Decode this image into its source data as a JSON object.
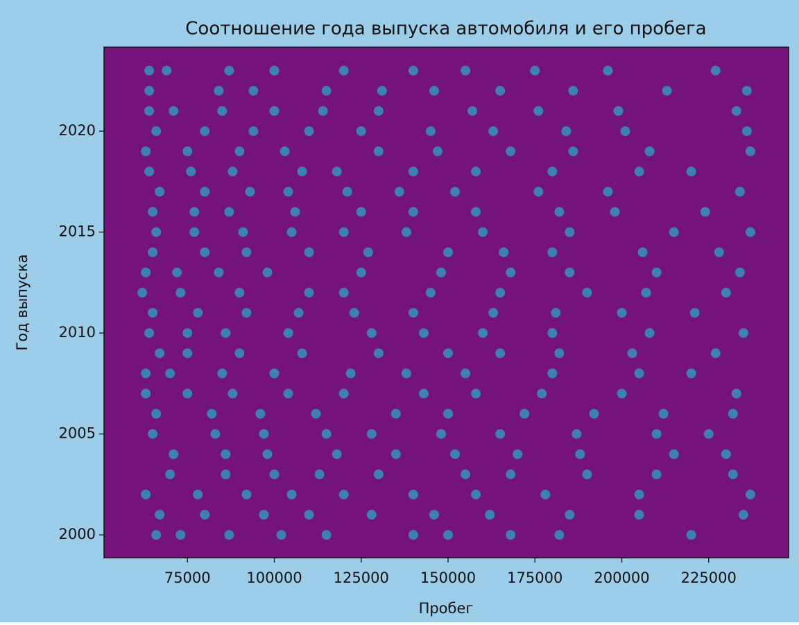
{
  "chart_data": {
    "type": "scatter",
    "title": "Соотношение года выпуска автомобиля и его пробега",
    "xlabel": "Пробег",
    "ylabel": "Год выпуска",
    "color": "#3d80b6",
    "facecolor": "#74137a",
    "background": "#9ccde9",
    "xlim": [
      51000,
      248000
    ],
    "ylim": [
      1998.87,
      2024.16
    ],
    "xticks": [
      75000,
      100000,
      125000,
      150000,
      175000,
      200000,
      225000
    ],
    "yticks": [
      2000,
      2005,
      2010,
      2015,
      2020
    ],
    "x": [
      66000,
      73000,
      87000,
      102000,
      115000,
      140000,
      150000,
      168000,
      182000,
      220000,
      67000,
      80000,
      97000,
      110000,
      128000,
      146000,
      162000,
      185000,
      205000,
      235000,
      63000,
      78000,
      92000,
      105000,
      120000,
      140000,
      158000,
      178000,
      205000,
      237000,
      70000,
      86000,
      100000,
      113000,
      130000,
      155000,
      168000,
      190000,
      210000,
      232000,
      71000,
      86000,
      98000,
      118000,
      135000,
      152000,
      170000,
      188000,
      215000,
      230000,
      65000,
      83000,
      97000,
      115000,
      128000,
      148000,
      165000,
      187000,
      210000,
      225000,
      66000,
      82000,
      96000,
      112000,
      135000,
      150000,
      172000,
      192000,
      212000,
      232000,
      63000,
      75000,
      88000,
      104000,
      120000,
      143000,
      158000,
      177000,
      200000,
      233000,
      63000,
      70000,
      85000,
      100000,
      122000,
      138000,
      155000,
      180000,
      205000,
      220000,
      67000,
      75000,
      90000,
      108000,
      130000,
      150000,
      165000,
      182000,
      203000,
      227000,
      64000,
      75000,
      86000,
      104000,
      128000,
      143000,
      160000,
      180000,
      208000,
      235000,
      65000,
      78000,
      92000,
      107000,
      123000,
      140000,
      163000,
      181000,
      200000,
      221000,
      62000,
      73000,
      90000,
      110000,
      120000,
      145000,
      165000,
      190000,
      207000,
      230000,
      63000,
      72000,
      84000,
      98000,
      125000,
      148000,
      168000,
      185000,
      210000,
      234000,
      65000,
      80000,
      92000,
      110000,
      127000,
      150000,
      166000,
      180000,
      206000,
      228000,
      66000,
      77000,
      91000,
      105000,
      120000,
      138000,
      160000,
      185000,
      215000,
      237000,
      65000,
      77000,
      87000,
      106000,
      125000,
      140000,
      158000,
      182000,
      198000,
      224000,
      67000,
      80000,
      93000,
      104000,
      121000,
      136000,
      152000,
      176000,
      196000,
      234000,
      64000,
      76000,
      88000,
      108000,
      118000,
      140000,
      158000,
      180000,
      205000,
      220000,
      63000,
      75000,
      90000,
      103000,
      130000,
      147000,
      168000,
      186000,
      208000,
      237000,
      66000,
      80000,
      94000,
      110000,
      125000,
      145000,
      163000,
      184000,
      201000,
      236000,
      64000,
      71000,
      85000,
      100000,
      114000,
      130000,
      157000,
      176000,
      199000,
      233000,
      64000,
      84000,
      94000,
      115000,
      131000,
      146000,
      165000,
      186000,
      213000,
      236000,
      64000,
      69000,
      87000,
      100000,
      120000,
      140000,
      155000,
      175000,
      196000,
      227000
    ],
    "y": [
      2000,
      2000,
      2000,
      2000,
      2000,
      2000,
      2000,
      2000,
      2000,
      2000,
      2001,
      2001,
      2001,
      2001,
      2001,
      2001,
      2001,
      2001,
      2001,
      2001,
      2002,
      2002,
      2002,
      2002,
      2002,
      2002,
      2002,
      2002,
      2002,
      2002,
      2003,
      2003,
      2003,
      2003,
      2003,
      2003,
      2003,
      2003,
      2003,
      2003,
      2004,
      2004,
      2004,
      2004,
      2004,
      2004,
      2004,
      2004,
      2004,
      2004,
      2005,
      2005,
      2005,
      2005,
      2005,
      2005,
      2005,
      2005,
      2005,
      2005,
      2006,
      2006,
      2006,
      2006,
      2006,
      2006,
      2006,
      2006,
      2006,
      2006,
      2007,
      2007,
      2007,
      2007,
      2007,
      2007,
      2007,
      2007,
      2007,
      2007,
      2008,
      2008,
      2008,
      2008,
      2008,
      2008,
      2008,
      2008,
      2008,
      2008,
      2009,
      2009,
      2009,
      2009,
      2009,
      2009,
      2009,
      2009,
      2009,
      2009,
      2010,
      2010,
      2010,
      2010,
      2010,
      2010,
      2010,
      2010,
      2010,
      2010,
      2011,
      2011,
      2011,
      2011,
      2011,
      2011,
      2011,
      2011,
      2011,
      2011,
      2012,
      2012,
      2012,
      2012,
      2012,
      2012,
      2012,
      2012,
      2012,
      2012,
      2013,
      2013,
      2013,
      2013,
      2013,
      2013,
      2013,
      2013,
      2013,
      2013,
      2014,
      2014,
      2014,
      2014,
      2014,
      2014,
      2014,
      2014,
      2014,
      2014,
      2015,
      2015,
      2015,
      2015,
      2015,
      2015,
      2015,
      2015,
      2015,
      2015,
      2016,
      2016,
      2016,
      2016,
      2016,
      2016,
      2016,
      2016,
      2016,
      2016,
      2017,
      2017,
      2017,
      2017,
      2017,
      2017,
      2017,
      2017,
      2017,
      2017,
      2018,
      2018,
      2018,
      2018,
      2018,
      2018,
      2018,
      2018,
      2018,
      2018,
      2019,
      2019,
      2019,
      2019,
      2019,
      2019,
      2019,
      2019,
      2019,
      2019,
      2020,
      2020,
      2020,
      2020,
      2020,
      2020,
      2020,
      2020,
      2020,
      2020,
      2021,
      2021,
      2021,
      2021,
      2021,
      2021,
      2021,
      2021,
      2021,
      2021,
      2022,
      2022,
      2022,
      2022,
      2022,
      2022,
      2022,
      2022,
      2022,
      2022,
      2023,
      2023,
      2023,
      2023,
      2023,
      2023,
      2023,
      2023,
      2023,
      2023
    ]
  }
}
